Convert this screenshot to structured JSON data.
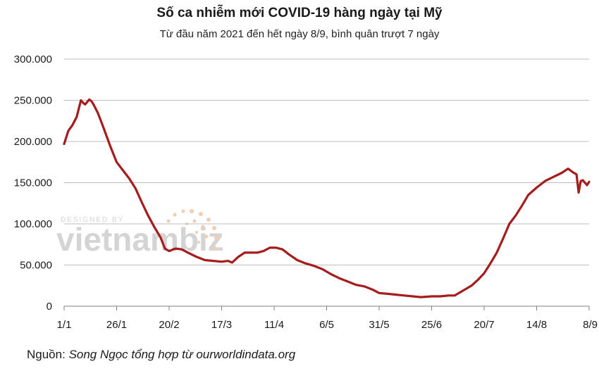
{
  "chart_data": {
    "type": "line",
    "title": "Số ca nhiễm mới COVID-19 hàng ngày tại Mỹ",
    "subtitle": "Từ đầu năm 2021 đến hết ngày 8/9, bình quân trượt 7 ngày",
    "source_label": "Nguồn:",
    "source_text": "Song Ngọc tổng hợp từ ourworldindata.org",
    "watermark": {
      "small": "DESIGNED BY",
      "brand": "vietnambiz"
    },
    "line_color": "#a51c1c",
    "ylim": [
      0,
      300000
    ],
    "grid": true,
    "y_tick_values": [
      0,
      50000,
      100000,
      150000,
      200000,
      250000,
      300000
    ],
    "y_tick_labels": [
      "0",
      "50.000",
      "100.000",
      "150.000",
      "200.000",
      "250.000",
      "300.000"
    ],
    "x_tick_labels": [
      "1/1",
      "26/1",
      "20/2",
      "17/3",
      "11/4",
      "6/5",
      "31/5",
      "25/6",
      "20/7",
      "14/8",
      "8/9"
    ],
    "x_tick_dates": [
      "2021-01-01",
      "2021-01-26",
      "2021-02-20",
      "2021-03-17",
      "2021-04-11",
      "2021-05-06",
      "2021-05-31",
      "2021-06-25",
      "2021-07-20",
      "2021-08-14",
      "2021-09-08"
    ],
    "series": [
      {
        "x": [
          "2021-01-01",
          "2021-01-03",
          "2021-01-05",
          "2021-01-07",
          "2021-01-09",
          "2021-01-10",
          "2021-01-11",
          "2021-01-12",
          "2021-01-13",
          "2021-01-14",
          "2021-01-15",
          "2021-01-17",
          "2021-01-19",
          "2021-01-21",
          "2021-01-23",
          "2021-01-26",
          "2021-01-29",
          "2021-02-01",
          "2021-02-04",
          "2021-02-07",
          "2021-02-10",
          "2021-02-13",
          "2021-02-16",
          "2021-02-18",
          "2021-02-20",
          "2021-02-23",
          "2021-02-26",
          "2021-03-01",
          "2021-03-05",
          "2021-03-09",
          "2021-03-13",
          "2021-03-17",
          "2021-03-20",
          "2021-03-22",
          "2021-03-25",
          "2021-03-28",
          "2021-03-31",
          "2021-04-03",
          "2021-04-06",
          "2021-04-09",
          "2021-04-12",
          "2021-04-15",
          "2021-04-18",
          "2021-04-22",
          "2021-04-26",
          "2021-04-30",
          "2021-05-04",
          "2021-05-08",
          "2021-05-12",
          "2021-05-16",
          "2021-05-20",
          "2021-05-24",
          "2021-05-28",
          "2021-05-31",
          "2021-06-04",
          "2021-06-08",
          "2021-06-12",
          "2021-06-16",
          "2021-06-20",
          "2021-06-25",
          "2021-06-29",
          "2021-07-03",
          "2021-07-06",
          "2021-07-10",
          "2021-07-14",
          "2021-07-17",
          "2021-07-20",
          "2021-07-23",
          "2021-07-26",
          "2021-07-29",
          "2021-08-01",
          "2021-08-04",
          "2021-08-07",
          "2021-08-10",
          "2021-08-14",
          "2021-08-18",
          "2021-08-22",
          "2021-08-26",
          "2021-08-29",
          "2021-08-31",
          "2021-09-02",
          "2021-09-03",
          "2021-09-04",
          "2021-09-05",
          "2021-09-06",
          "2021-09-07",
          "2021-09-08"
        ],
        "values": [
          197000,
          213000,
          220000,
          230000,
          250000,
          247000,
          245000,
          248000,
          251000,
          249000,
          245000,
          235000,
          222000,
          208000,
          194000,
          175000,
          165000,
          155000,
          143000,
          126000,
          110000,
          96000,
          83000,
          70000,
          67000,
          70000,
          69000,
          65000,
          60000,
          56000,
          55000,
          54000,
          55000,
          53000,
          60000,
          65000,
          65000,
          65000,
          67000,
          71000,
          71000,
          69000,
          63000,
          56000,
          52000,
          49000,
          45000,
          39000,
          34000,
          30000,
          26000,
          24000,
          20000,
          16000,
          15000,
          14000,
          13000,
          12000,
          11000,
          12000,
          12000,
          13000,
          13000,
          19000,
          25000,
          32000,
          40000,
          52000,
          65000,
          82000,
          100000,
          110000,
          122000,
          135000,
          144000,
          152000,
          157000,
          162000,
          167000,
          163000,
          160000,
          138000,
          152000,
          153000,
          150000,
          147000,
          151000
        ]
      }
    ]
  }
}
